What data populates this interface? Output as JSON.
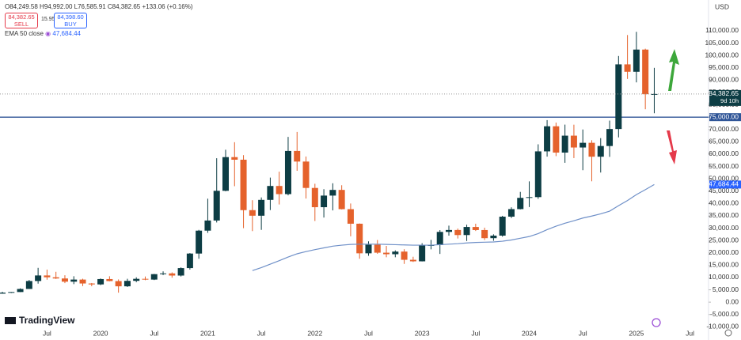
{
  "chart_data": {
    "type": "candlestick",
    "ohlc_label": "O84,249.58 H94,992.00 L76,585.91 C84,382.65 +133.06 (+0.16%)",
    "sell": {
      "price": "84,382.65",
      "label": "SELL"
    },
    "spread": "15.95",
    "buy": {
      "price": "84,398.60",
      "label": "BUY"
    },
    "currency": "USD",
    "logo": "TradingView",
    "countdown": "9d 10h",
    "price_label": "84,382.65",
    "level": {
      "value": 75000,
      "label": "75,000.00",
      "color": "#2f5597"
    },
    "up_color": "#0d3d44",
    "down_color": "#e5622c",
    "categories": [
      null,
      null,
      null,
      null,
      null,
      "Jul",
      null,
      null,
      null,
      null,
      null,
      "2020",
      null,
      null,
      null,
      null,
      null,
      "Jul",
      null,
      null,
      null,
      null,
      null,
      "2021",
      null,
      null,
      null,
      null,
      null,
      "Jul",
      null,
      null,
      null,
      null,
      null,
      "2022",
      null,
      null,
      null,
      null,
      null,
      "Jul",
      null,
      null,
      null,
      null,
      null,
      "2023",
      null,
      null,
      null,
      null,
      null,
      "Jul",
      null,
      null,
      null,
      null,
      null,
      "2024",
      null,
      null,
      null,
      null,
      null,
      "Jul",
      null,
      null,
      null,
      null,
      null,
      "2025",
      null,
      null,
      null,
      null,
      null,
      "Jul"
    ],
    "open": [
      3440,
      3850,
      4100,
      5350,
      8570,
      10820,
      10080,
      9600,
      8300,
      9150,
      7560,
      7190,
      9350,
      8540,
      6420,
      8630,
      9450,
      9140,
      11350,
      11660,
      10780,
      13800,
      19700,
      28990,
      33100,
      45140,
      58800,
      57750,
      37300,
      35040,
      41460,
      47100,
      43800,
      61300,
      57000,
      46300,
      38500,
      43200,
      45500,
      37700,
      31800,
      19800,
      23300,
      20050,
      19430,
      20500,
      17170,
      16550,
      23130,
      23150,
      28480,
      29250,
      27200,
      30470,
      29230,
      25940,
      26970,
      34660,
      37720,
      42280,
      42580,
      61130,
      71300,
      60640,
      67500,
      62700,
      64600,
      58970,
      63300,
      70200,
      96400,
      93400,
      102400,
      84249.58,
      null,
      null,
      null,
      null
    ],
    "high": [
      4200,
      4100,
      5600,
      9000,
      13900,
      13200,
      12300,
      10900,
      10500,
      9500,
      7750,
      9600,
      10500,
      9200,
      9470,
      10070,
      10400,
      11450,
      12480,
      12070,
      14100,
      19900,
      29300,
      41950,
      58350,
      61780,
      64850,
      59600,
      41330,
      42450,
      50500,
      52900,
      67000,
      69000,
      59050,
      48000,
      45800,
      48200,
      47400,
      40000,
      31900,
      24650,
      25200,
      22800,
      21000,
      21450,
      18400,
      23900,
      25250,
      29200,
      31000,
      29850,
      31400,
      31800,
      30200,
      27500,
      35000,
      38450,
      44700,
      48970,
      64000,
      73800,
      72800,
      71980,
      71950,
      70000,
      65650,
      66500,
      73600,
      99800,
      108300,
      109600,
      102750,
      94992,
      null,
      null,
      null,
      null
    ],
    "low": [
      3400,
      3700,
      4100,
      5350,
      7500,
      9100,
      9400,
      7700,
      7300,
      6500,
      6450,
      6900,
      8450,
      3850,
      6150,
      8100,
      8900,
      8950,
      10960,
      9900,
      10400,
      13200,
      17600,
      28100,
      32300,
      44950,
      47000,
      30000,
      28800,
      29300,
      37330,
      39600,
      43300,
      53250,
      42000,
      32900,
      34300,
      37200,
      37600,
      26700,
      17600,
      18800,
      19600,
      18200,
      18200,
      15500,
      16300,
      16500,
      21400,
      19550,
      26950,
      25800,
      24800,
      28850,
      25200,
      24900,
      26550,
      34100,
      37600,
      38550,
      41880,
      59000,
      59200,
      56500,
      58400,
      53500,
      49000,
      52550,
      58900,
      66800,
      90500,
      89100,
      78200,
      76585.91,
      null,
      null,
      null,
      null
    ],
    "close": [
      3850,
      4100,
      5350,
      8570,
      10820,
      10080,
      9600,
      8300,
      9150,
      7560,
      7190,
      9350,
      8540,
      6420,
      8630,
      9450,
      9140,
      11350,
      11660,
      10780,
      13800,
      19700,
      28990,
      33100,
      45140,
      58800,
      57750,
      37300,
      35040,
      41460,
      47100,
      43800,
      61300,
      57000,
      46300,
      38500,
      43200,
      45500,
      37700,
      31800,
      19800,
      23300,
      20050,
      19430,
      20500,
      17170,
      16550,
      23130,
      23150,
      28480,
      29250,
      27200,
      30470,
      29230,
      25940,
      26970,
      34660,
      37720,
      42280,
      42580,
      61130,
      71300,
      60640,
      67500,
      62700,
      64600,
      58970,
      63300,
      70200,
      96400,
      93400,
      102400,
      84300,
      84382.65,
      null,
      null,
      null,
      null
    ],
    "ema": {
      "name": "EMA 50 close",
      "color": "#6f90c8",
      "last_label": "47,684.44",
      "values": [
        null,
        null,
        null,
        null,
        null,
        null,
        null,
        null,
        null,
        null,
        null,
        null,
        null,
        null,
        null,
        null,
        null,
        null,
        null,
        null,
        null,
        null,
        null,
        null,
        null,
        null,
        null,
        null,
        12800,
        14000,
        15400,
        16800,
        18300,
        19600,
        20500,
        21300,
        22000,
        22700,
        23100,
        23400,
        23500,
        23500,
        23500,
        23400,
        23300,
        23200,
        23100,
        23100,
        23100,
        23300,
        23500,
        23700,
        24000,
        24200,
        24300,
        24400,
        24700,
        25200,
        25900,
        26600,
        27800,
        29400,
        30800,
        32000,
        33000,
        34100,
        34900,
        35800,
        36900,
        39100,
        41200,
        43600,
        45600,
        47684.44,
        null,
        null,
        null,
        null
      ]
    },
    "ylim": [
      -11500,
      122500
    ],
    "yticks": [
      {
        "value": -10000,
        "label": "-10,000.00"
      },
      {
        "value": -5000,
        "label": "-5,000.00"
      },
      {
        "value": 0,
        "label": "0.00"
      },
      {
        "value": 5000,
        "label": "5,000.00"
      },
      {
        "value": 10000,
        "label": "10,000.00"
      },
      {
        "value": 15000,
        "label": "15,000.00"
      },
      {
        "value": 20000,
        "label": "20,000.00"
      },
      {
        "value": 25000,
        "label": "25,000.00"
      },
      {
        "value": 30000,
        "label": "30,000.00"
      },
      {
        "value": 35000,
        "label": "35,000.00"
      },
      {
        "value": 40000,
        "label": "40,000.00"
      },
      {
        "value": 45000,
        "label": "45,000.00"
      },
      {
        "value": 50000,
        "label": "50,000.00"
      },
      {
        "value": 55000,
        "label": "55,000.00"
      },
      {
        "value": 60000,
        "label": "60,000.00"
      },
      {
        "value": 65000,
        "label": "65,000.00"
      },
      {
        "value": 70000,
        "label": "70,000.00"
      },
      {
        "value": 75000,
        "label": "75,000.00"
      },
      {
        "value": 80000,
        "label": "80,000.00"
      },
      {
        "value": 85000,
        "label": "85,000.00"
      },
      {
        "value": 90000,
        "label": "90,000.00"
      },
      {
        "value": 95000,
        "label": "95,000.00"
      },
      {
        "value": 100000,
        "label": "100,000.00"
      },
      {
        "value": 105000,
        "label": "105,000.00"
      },
      {
        "value": 110000,
        "label": "110,000.00"
      }
    ],
    "grid": false
  }
}
